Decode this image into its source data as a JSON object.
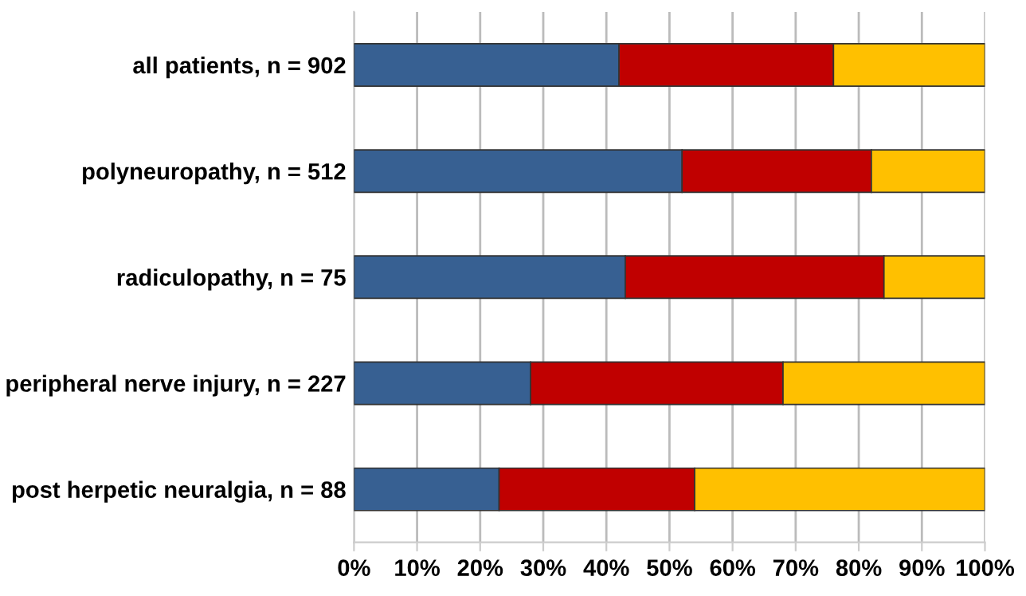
{
  "chart_data": {
    "type": "bar",
    "orientation": "horizontal",
    "stacked": true,
    "categories": [
      "all patients, n = 902",
      "polyneuropathy, n = 512",
      "radiculopathy, n = 75",
      "peripheral nerve injury, n = 227",
      "post herpetic neuralgia, n = 88"
    ],
    "series": [
      {
        "color": "#376092",
        "values": [
          42,
          52,
          43,
          28,
          23
        ]
      },
      {
        "color": "#c00000",
        "values": [
          34,
          30,
          41,
          40,
          31
        ]
      },
      {
        "color": "#ffc000",
        "values": [
          24,
          18,
          16,
          32,
          46
        ]
      }
    ],
    "xlim": [
      0,
      100
    ],
    "xticks": [
      {
        "value": 0,
        "label": "0%"
      },
      {
        "value": 10,
        "label": "10%"
      },
      {
        "value": 20,
        "label": "20%"
      },
      {
        "value": 30,
        "label": "30%"
      },
      {
        "value": 40,
        "label": "40%"
      },
      {
        "value": 50,
        "label": "50%"
      },
      {
        "value": 60,
        "label": "60%"
      },
      {
        "value": 70,
        "label": "70%"
      },
      {
        "value": 80,
        "label": "80%"
      },
      {
        "value": 90,
        "label": "90%"
      },
      {
        "value": 100,
        "label": "100%"
      }
    ],
    "grid": "x",
    "legend": false
  }
}
